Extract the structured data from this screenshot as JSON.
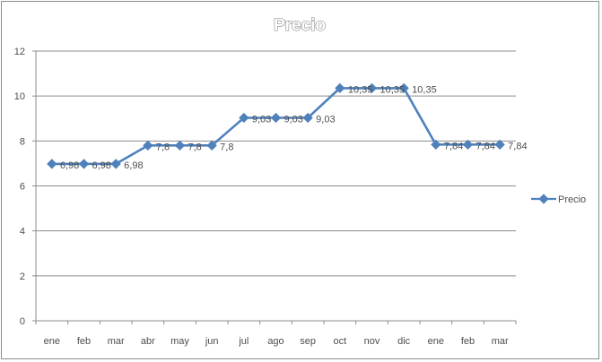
{
  "chart_data": {
    "type": "line",
    "title": "Precio",
    "xlabel": "",
    "ylabel": "",
    "categories": [
      "ene",
      "feb",
      "mar",
      "abr",
      "may",
      "jun",
      "jul",
      "ago",
      "sep",
      "oct",
      "nov",
      "dic",
      "ene",
      "feb",
      "mar"
    ],
    "series": [
      {
        "name": "Precio",
        "values": [
          6.98,
          6.98,
          6.98,
          7.8,
          7.8,
          7.8,
          9.03,
          9.03,
          9.03,
          10.35,
          10.35,
          10.35,
          7.84,
          7.84,
          7.84
        ],
        "labels": [
          "6,98",
          "6,98",
          "6,98",
          "7,8",
          "7,8",
          "7,8",
          "9,03",
          "9,03",
          "9,03",
          "10,35",
          "10,35",
          "10,35",
          "7,84",
          "7,84",
          "7,84"
        ],
        "color": "#4f81bd"
      }
    ],
    "yticks": [
      "0",
      "2",
      "4",
      "6",
      "8",
      "10",
      "12"
    ],
    "ylim": [
      0,
      12
    ],
    "grid": true,
    "legend": "right"
  }
}
